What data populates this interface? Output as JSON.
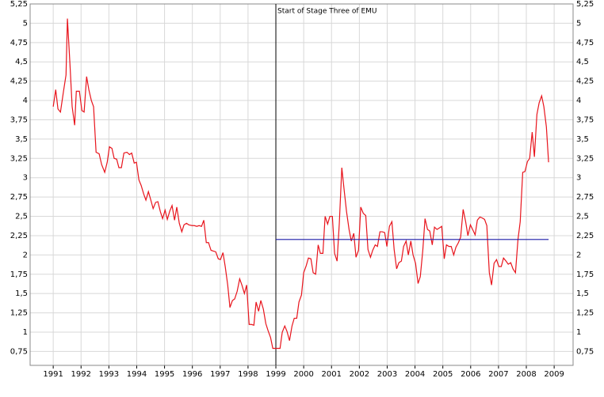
{
  "chart_data": {
    "type": "line",
    "annotation": {
      "text": "Start of Stage Three of EMU",
      "x": 1999
    },
    "xlim": [
      1990.17,
      2009.68
    ],
    "xticks": [
      1991,
      1992,
      1993,
      1994,
      1995,
      1996,
      1997,
      1998,
      1999,
      2000,
      2001,
      2002,
      2003,
      2004,
      2005,
      2006,
      2007,
      2008,
      2009
    ],
    "ylim": [
      0.57,
      5.25
    ],
    "yticks": [
      {
        "value": 0.75,
        "label": "0,75"
      },
      1,
      {
        "value": 1.25,
        "label": "1,25"
      },
      {
        "value": 1.5,
        "label": "1,5"
      },
      {
        "value": 1.75,
        "label": "1,75"
      },
      2,
      {
        "value": 2.25,
        "label": "2,25"
      },
      {
        "value": 2.5,
        "label": "2,5"
      },
      {
        "value": 2.75,
        "label": "2,75"
      },
      3,
      {
        "value": 3.25,
        "label": "3,25"
      },
      {
        "value": 3.5,
        "label": "3,5"
      },
      {
        "value": 3.75,
        "label": "3,75"
      },
      4,
      {
        "value": 4.25,
        "label": "4,25"
      },
      {
        "value": 4.5,
        "label": "4,5"
      },
      {
        "value": 4.75,
        "label": "4,75"
      },
      5,
      {
        "value": 5.25,
        "label": "5,25"
      }
    ],
    "grid": true,
    "series": [
      {
        "color": "#e8141c",
        "x": [
          1991.0,
          1991.09,
          1991.17,
          1991.26,
          1991.37,
          1991.46,
          1991.51,
          1991.6,
          1991.68,
          1991.77,
          1991.83,
          1991.94,
          1992.03,
          1992.11,
          1992.2,
          1992.28,
          1992.37,
          1992.45,
          1992.54,
          1992.65,
          1992.74,
          1992.85,
          1992.94,
          1993.02,
          1993.11,
          1993.19,
          1993.28,
          1993.36,
          1993.45,
          1993.54,
          1993.65,
          1993.74,
          1993.82,
          1993.91,
          1993.99,
          1994.08,
          1994.16,
          1994.25,
          1994.33,
          1994.42,
          1994.5,
          1994.59,
          1994.68,
          1994.76,
          1994.85,
          1994.93,
          1995.02,
          1995.1,
          1995.19,
          1995.27,
          1995.36,
          1995.44,
          1995.53,
          1995.62,
          1995.7,
          1995.79,
          1995.87,
          1995.99,
          1996.07,
          1996.16,
          1996.24,
          1996.33,
          1996.41,
          1996.5,
          1996.58,
          1996.67,
          1996.75,
          1996.84,
          1996.93,
          1997.01,
          1997.1,
          1997.18,
          1997.27,
          1997.35,
          1997.44,
          1997.52,
          1997.61,
          1997.7,
          1997.78,
          1997.87,
          1997.95,
          1998.04,
          1998.12,
          1998.21,
          1998.29,
          1998.38,
          1998.46,
          1998.55,
          1998.64,
          1998.72,
          1998.81,
          1998.89,
          1998.98,
          1999.06,
          1999.15,
          1999.23,
          1999.32,
          1999.4,
          1999.49,
          1999.58,
          1999.66,
          1999.75,
          1999.83,
          1999.92,
          2000.0,
          2000.09,
          2000.17,
          2000.26,
          2000.34,
          2000.43,
          2000.52,
          2000.6,
          2000.69,
          2000.77,
          2000.86,
          2000.94,
          2001.03,
          2001.11,
          2001.2,
          2001.28,
          2001.37,
          2001.46,
          2001.54,
          2001.63,
          2001.71,
          2001.8,
          2001.88,
          2001.97,
          2002.05,
          2002.14,
          2002.23,
          2002.31,
          2002.4,
          2002.48,
          2002.57,
          2002.65,
          2002.74,
          2002.82,
          2002.91,
          2002.99,
          2003.08,
          2003.17,
          2003.25,
          2003.34,
          2003.42,
          2003.51,
          2003.59,
          2003.68,
          2003.76,
          2003.85,
          2003.93,
          2004.02,
          2004.11,
          2004.19,
          2004.28,
          2004.36,
          2004.45,
          2004.53,
          2004.62,
          2004.7,
          2004.79,
          2004.88,
          2004.96,
          2005.05,
          2005.13,
          2005.22,
          2005.3,
          2005.39,
          2005.47,
          2005.56,
          2005.64,
          2005.73,
          2005.82,
          2005.9,
          2005.99,
          2006.07,
          2006.16,
          2006.24,
          2006.33,
          2006.41,
          2006.5,
          2006.58,
          2006.67,
          2006.75,
          2006.84,
          2006.93,
          2007.01,
          2007.1,
          2007.18,
          2007.27,
          2007.35,
          2007.44,
          2007.52,
          2007.61,
          2007.7,
          2007.78,
          2007.87,
          2007.95,
          2008.04,
          2008.12,
          2008.21,
          2008.29,
          2008.38,
          2008.46,
          2008.55,
          2008.63,
          2008.72,
          2008.8
        ],
        "values": [
          3.92,
          4.14,
          3.89,
          3.85,
          4.12,
          4.33,
          5.06,
          4.48,
          3.92,
          3.68,
          4.12,
          4.12,
          3.87,
          3.85,
          4.31,
          4.14,
          4.0,
          3.92,
          3.33,
          3.31,
          3.17,
          3.07,
          3.2,
          3.4,
          3.38,
          3.25,
          3.24,
          3.13,
          3.13,
          3.32,
          3.33,
          3.3,
          3.32,
          3.19,
          3.2,
          2.97,
          2.9,
          2.79,
          2.71,
          2.82,
          2.72,
          2.6,
          2.68,
          2.69,
          2.56,
          2.47,
          2.58,
          2.46,
          2.57,
          2.64,
          2.45,
          2.62,
          2.41,
          2.3,
          2.39,
          2.41,
          2.39,
          2.38,
          2.38,
          2.37,
          2.38,
          2.37,
          2.45,
          2.16,
          2.16,
          2.06,
          2.05,
          2.04,
          1.95,
          1.94,
          2.03,
          1.85,
          1.61,
          1.32,
          1.41,
          1.43,
          1.53,
          1.69,
          1.61,
          1.5,
          1.61,
          1.1,
          1.1,
          1.09,
          1.39,
          1.27,
          1.41,
          1.3,
          1.11,
          1.02,
          0.93,
          0.79,
          0.79,
          0.79,
          0.79,
          1.0,
          1.08,
          1.01,
          0.89,
          1.08,
          1.18,
          1.18,
          1.39,
          1.48,
          1.77,
          1.86,
          1.96,
          1.95,
          1.77,
          1.75,
          2.13,
          2.02,
          2.02,
          2.5,
          2.4,
          2.5,
          2.5,
          2.02,
          1.92,
          2.41,
          3.13,
          2.82,
          2.56,
          2.33,
          2.18,
          2.28,
          1.97,
          2.06,
          2.62,
          2.54,
          2.51,
          2.07,
          1.97,
          2.06,
          2.13,
          2.11,
          2.3,
          2.3,
          2.29,
          2.11,
          2.37,
          2.43,
          2.07,
          1.82,
          1.9,
          1.92,
          2.11,
          2.18,
          2.0,
          2.18,
          2.0,
          1.89,
          1.63,
          1.72,
          2.06,
          2.47,
          2.33,
          2.31,
          2.13,
          2.36,
          2.33,
          2.35,
          2.37,
          1.95,
          2.13,
          2.11,
          2.11,
          2.0,
          2.1,
          2.16,
          2.23,
          2.59,
          2.43,
          2.25,
          2.39,
          2.33,
          2.26,
          2.45,
          2.49,
          2.48,
          2.46,
          2.38,
          1.77,
          1.61,
          1.89,
          1.94,
          1.85,
          1.85,
          1.96,
          1.92,
          1.88,
          1.9,
          1.82,
          1.77,
          2.2,
          2.43,
          3.07,
          3.08,
          3.21,
          3.25,
          3.59,
          3.27,
          3.82,
          3.97,
          4.06,
          3.92,
          3.66,
          3.2
        ]
      },
      {
        "color": "#1a1aa6",
        "x": [
          1999,
          2008.8
        ],
        "values": [
          2.2,
          2.2
        ]
      }
    ]
  }
}
